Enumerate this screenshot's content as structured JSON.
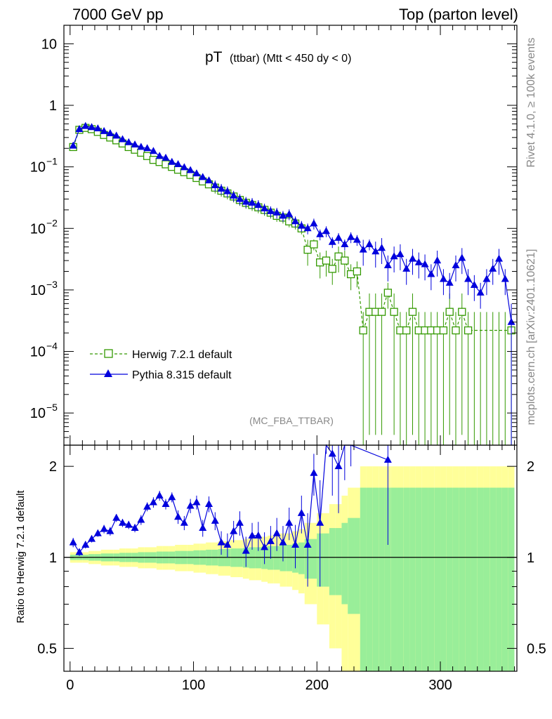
{
  "header": {
    "left_title": "7000 GeV pp",
    "right_title": "Top (parton level)"
  },
  "side_labels": {
    "rivet": "Rivet 4.1.0, ≥ 100k events",
    "mcplots": "mcplots.cern.ch [arXiv:2401.10621]"
  },
  "colors": {
    "herwig": "#339900",
    "pythia": "#0000dd",
    "band_inner": "#99ee99",
    "band_outer": "#ffff99"
  },
  "chart_data": [
    {
      "type": "line",
      "panel": "main",
      "title_main": "pT",
      "title_sub": "(ttbar) (Mtt < 450 dy < 0)",
      "watermark": "(MC_FBA_TTBAR)",
      "yscale": "log",
      "xlim": [
        -5,
        362
      ],
      "ylim": [
        3e-06,
        20
      ],
      "y_ticks": [
        {
          "value": 10,
          "label": "10"
        },
        {
          "value": 1,
          "label": "1"
        },
        {
          "value": 0.1,
          "base": "10",
          "exp": "−1"
        },
        {
          "value": 0.01,
          "base": "10",
          "exp": "−2"
        },
        {
          "value": 0.001,
          "base": "10",
          "exp": "−3"
        },
        {
          "value": 0.0001,
          "base": "10",
          "exp": "−4"
        },
        {
          "value": 1e-05,
          "base": "10",
          "exp": "−5"
        }
      ],
      "legend_position": "bottom-left",
      "series": [
        {
          "name": "Herwig 7.2.1 default",
          "marker": "open-square",
          "line": "dashed",
          "x": [
            2.5,
            7.5,
            12.5,
            17.5,
            22.5,
            27.5,
            32.5,
            37.5,
            42.5,
            47.5,
            52.5,
            57.5,
            62.5,
            67.5,
            72.5,
            77.5,
            82.5,
            87.5,
            92.5,
            97.5,
            102.5,
            107.5,
            112.5,
            117.5,
            122.5,
            127.5,
            132.5,
            137.5,
            142.5,
            147.5,
            152.5,
            157.5,
            162.5,
            167.5,
            172.5,
            177.5,
            182.5,
            187.5,
            192.5,
            197.5,
            202.5,
            207.5,
            212.5,
            217.5,
            222.5,
            227.5,
            232.5,
            237.5,
            242.5,
            247.5,
            252.5,
            257.5,
            262.5,
            267.5,
            272.5,
            277.5,
            282.5,
            287.5,
            292.5,
            297.5,
            302.5,
            307.5,
            312.5,
            317.5,
            322.5,
            327.5,
            332.5,
            337.5,
            342.5,
            347.5,
            352.5,
            357.5
          ],
          "y": [
            0.21,
            0.4,
            0.43,
            0.41,
            0.37,
            0.33,
            0.3,
            0.27,
            0.24,
            0.21,
            0.19,
            0.17,
            0.15,
            0.13,
            0.12,
            0.11,
            0.1,
            0.09,
            0.082,
            0.074,
            0.066,
            0.058,
            0.052,
            0.046,
            0.041,
            0.037,
            0.033,
            0.029,
            0.026,
            0.024,
            0.022,
            0.02,
            0.018,
            0.016,
            0.015,
            0.013,
            0.012,
            0.01,
            0.0045,
            0.0055,
            0.0028,
            0.003,
            0.0022,
            0.0035,
            0.003,
            0.0018,
            0.002,
            0.00022,
            0.00044,
            0.00044,
            0.00044,
            0.0009,
            0.00044,
            0.00022,
            0.00022,
            0.00044,
            0.00022,
            0.00022,
            0.00022,
            0.00022,
            0.00022,
            0.00044,
            0.00022,
            0.00044,
            0.00022,
            0.00022,
            0.00022,
            0.00022,
            0.00022,
            0.00022,
            0.00022,
            0.00022
          ],
          "markers_x": [
            2.5,
            7.5,
            12.5,
            17.5,
            22.5,
            27.5,
            32.5,
            37.5,
            42.5,
            47.5,
            52.5,
            57.5,
            62.5,
            67.5,
            72.5,
            77.5,
            82.5,
            87.5,
            92.5,
            97.5,
            102.5,
            107.5,
            112.5,
            117.5,
            122.5,
            127.5,
            132.5,
            137.5,
            142.5,
            147.5,
            152.5,
            157.5,
            162.5,
            167.5,
            172.5,
            177.5,
            182.5,
            187.5,
            192.5,
            197.5,
            202.5,
            207.5,
            212.5,
            217.5,
            222.5,
            227.5,
            232.5,
            237.5,
            242.5,
            247.5,
            252.5,
            257.5,
            262.5,
            267.5,
            272.5,
            277.5,
            282.5,
            287.5,
            292.5,
            297.5,
            302.5,
            307.5,
            312.5,
            317.5,
            322.5,
            357.5
          ]
        },
        {
          "name": "Pythia 8.315 default",
          "marker": "filled-triangle",
          "line": "solid",
          "x": [
            2.5,
            7.5,
            12.5,
            17.5,
            22.5,
            27.5,
            32.5,
            37.5,
            42.5,
            47.5,
            52.5,
            57.5,
            62.5,
            67.5,
            72.5,
            77.5,
            82.5,
            87.5,
            92.5,
            97.5,
            102.5,
            107.5,
            112.5,
            117.5,
            122.5,
            127.5,
            132.5,
            137.5,
            142.5,
            147.5,
            152.5,
            157.5,
            162.5,
            167.5,
            172.5,
            177.5,
            182.5,
            187.5,
            192.5,
            197.5,
            202.5,
            207.5,
            212.5,
            217.5,
            222.5,
            227.5,
            232.5,
            237.5,
            242.5,
            247.5,
            252.5,
            257.5,
            262.5,
            267.5,
            272.5,
            277.5,
            282.5,
            287.5,
            292.5,
            297.5,
            302.5,
            307.5,
            312.5,
            317.5,
            322.5,
            327.5,
            332.5,
            337.5,
            342.5,
            347.5,
            352.5,
            357.5
          ],
          "y": [
            0.22,
            0.41,
            0.46,
            0.44,
            0.42,
            0.38,
            0.35,
            0.32,
            0.28,
            0.25,
            0.23,
            0.21,
            0.2,
            0.18,
            0.15,
            0.14,
            0.12,
            0.11,
            0.098,
            0.088,
            0.078,
            0.068,
            0.06,
            0.05,
            0.044,
            0.04,
            0.034,
            0.03,
            0.027,
            0.026,
            0.024,
            0.021,
            0.019,
            0.018,
            0.016,
            0.017,
            0.013,
            0.011,
            0.01,
            0.012,
            0.008,
            0.009,
            0.006,
            0.007,
            0.0055,
            0.0072,
            0.0065,
            0.0045,
            0.0055,
            0.0042,
            0.0048,
            0.0025,
            0.0035,
            0.0038,
            0.0022,
            0.0032,
            0.0028,
            0.0026,
            0.0018,
            0.003,
            0.0015,
            0.0013,
            0.0025,
            0.0033,
            0.0015,
            0.0012,
            0.0009,
            0.0015,
            0.0022,
            0.0032,
            0.0015,
            0.0003
          ]
        }
      ]
    },
    {
      "type": "line",
      "panel": "ratio",
      "ylabel": "Ratio to Herwig 7.2.1 default",
      "yscale": "log",
      "xlim": [
        -5,
        362
      ],
      "ylim": [
        0.42,
        2.35
      ],
      "y_ticks": [
        {
          "value": 2,
          "label": "2"
        },
        {
          "value": 1,
          "label": "1"
        },
        {
          "value": 0.5,
          "label": "0.5"
        }
      ],
      "x_ticks": [
        {
          "value": 0,
          "label": "0"
        },
        {
          "value": 100,
          "label": "100"
        },
        {
          "value": 200,
          "label": "200"
        },
        {
          "value": 300,
          "label": "300"
        }
      ],
      "reference_line": 1,
      "band_inner_relerr": [
        0.02,
        0.02,
        0.02,
        0.025,
        0.025,
        0.03,
        0.03,
        0.03,
        0.035,
        0.035,
        0.035,
        0.04,
        0.04,
        0.04,
        0.045,
        0.045,
        0.045,
        0.05,
        0.05,
        0.05,
        0.055,
        0.055,
        0.06,
        0.06,
        0.065,
        0.065,
        0.07,
        0.07,
        0.075,
        0.08,
        0.08,
        0.085,
        0.09,
        0.09,
        0.1,
        0.1,
        0.11,
        0.12,
        0.15,
        0.15,
        0.2,
        0.2,
        0.25,
        0.25,
        0.3,
        0.35,
        0.35,
        0.7,
        0.7,
        0.7,
        0.7,
        0.7,
        0.7,
        0.7,
        0.7,
        0.7,
        0.7,
        0.7,
        0.7,
        0.7,
        0.7,
        0.7,
        0.7,
        0.7,
        0.7,
        0.7,
        0.7,
        0.7,
        0.7,
        0.7,
        0.7,
        0.7
      ],
      "band_outer_relerr": [
        0.04,
        0.04,
        0.04,
        0.05,
        0.05,
        0.06,
        0.06,
        0.06,
        0.07,
        0.07,
        0.07,
        0.08,
        0.08,
        0.08,
        0.09,
        0.09,
        0.09,
        0.1,
        0.1,
        0.1,
        0.11,
        0.11,
        0.12,
        0.12,
        0.13,
        0.13,
        0.14,
        0.14,
        0.15,
        0.16,
        0.16,
        0.17,
        0.18,
        0.18,
        0.2,
        0.2,
        0.22,
        0.24,
        0.3,
        0.3,
        0.4,
        0.4,
        0.5,
        0.5,
        0.6,
        0.7,
        0.7,
        1.0,
        1.0,
        1.0,
        1.0,
        1.0,
        1.0,
        1.0,
        1.0,
        1.0,
        1.0,
        1.0,
        1.0,
        1.0,
        1.0,
        1.0,
        1.0,
        1.0,
        1.0,
        1.0,
        1.0,
        1.0,
        1.0,
        1.0,
        1.0,
        1.0
      ],
      "ratio_x": [
        2.5,
        7.5,
        12.5,
        17.5,
        22.5,
        27.5,
        32.5,
        37.5,
        42.5,
        47.5,
        52.5,
        57.5,
        62.5,
        67.5,
        72.5,
        77.5,
        82.5,
        87.5,
        92.5,
        97.5,
        102.5,
        107.5,
        112.5,
        117.5,
        122.5,
        127.5,
        132.5,
        137.5,
        142.5,
        147.5,
        152.5,
        157.5,
        162.5,
        167.5,
        172.5,
        177.5,
        182.5,
        187.5,
        192.5,
        197.5,
        202.5,
        207.5,
        212.5,
        217.5,
        222.5,
        227.5,
        257.5
      ],
      "ratio_y": [
        1.12,
        1.04,
        1.1,
        1.15,
        1.2,
        1.24,
        1.22,
        1.35,
        1.3,
        1.28,
        1.25,
        1.33,
        1.47,
        1.52,
        1.6,
        1.5,
        1.58,
        1.36,
        1.3,
        1.48,
        1.52,
        1.25,
        1.5,
        1.32,
        1.12,
        1.1,
        1.22,
        1.3,
        1.05,
        1.18,
        1.18,
        1.08,
        1.13,
        1.2,
        1.12,
        1.3,
        1.1,
        1.4,
        1.1,
        1.9,
        1.3,
        2.8,
        2.2,
        2.0,
        2.6,
        2.8,
        2.1
      ],
      "ratio_err": [
        0.04,
        0.03,
        0.03,
        0.03,
        0.03,
        0.04,
        0.04,
        0.04,
        0.04,
        0.04,
        0.04,
        0.05,
        0.05,
        0.06,
        0.06,
        0.06,
        0.06,
        0.07,
        0.07,
        0.08,
        0.08,
        0.08,
        0.09,
        0.09,
        0.1,
        0.1,
        0.1,
        0.12,
        0.12,
        0.12,
        0.13,
        0.13,
        0.14,
        0.15,
        0.15,
        0.16,
        0.18,
        0.2,
        0.3,
        0.3,
        0.5,
        0.6,
        0.6,
        0.6,
        0.8,
        0.8,
        1.0
      ]
    }
  ]
}
